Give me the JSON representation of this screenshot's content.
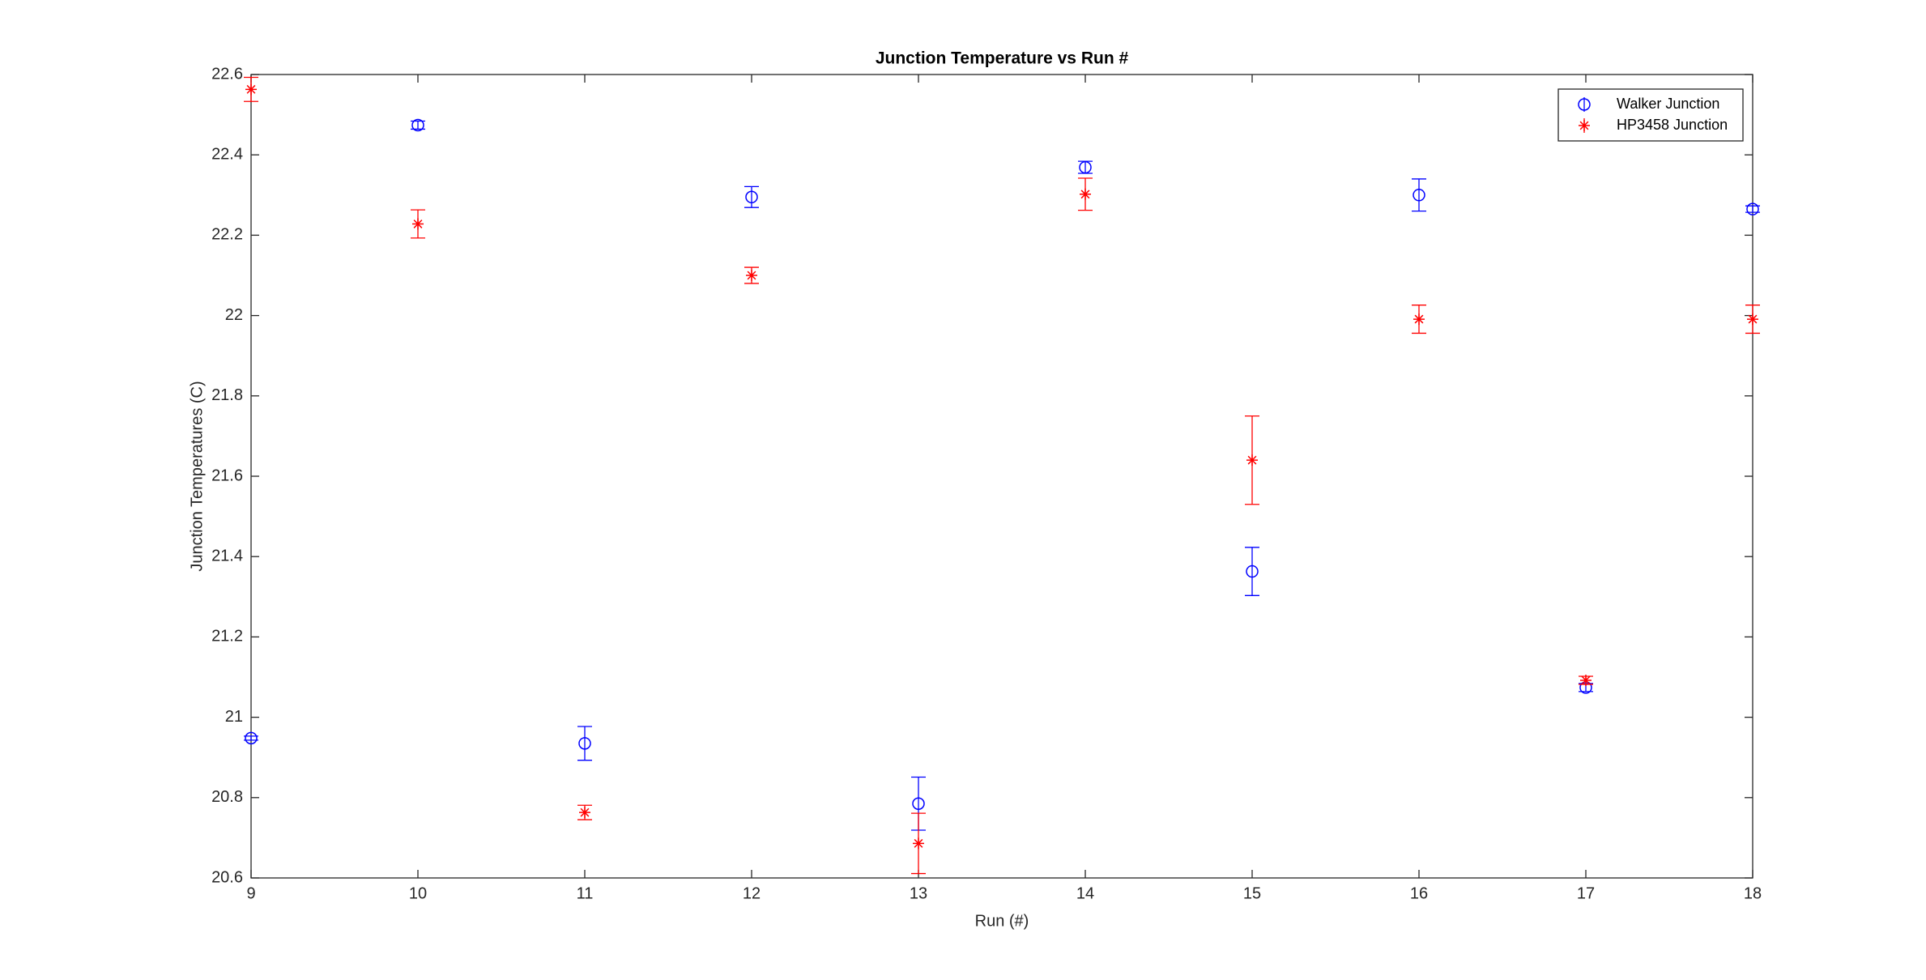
{
  "chart_data": {
    "type": "scatter",
    "title": "Junction Temperature vs Run #",
    "x_label": "Run (#)",
    "y_label": "Junction Temperatures (C)",
    "x": [
      9,
      10,
      11,
      12,
      13,
      14,
      15,
      16,
      17,
      18
    ],
    "xlim": [
      9,
      18
    ],
    "xticks": [
      9,
      10,
      11,
      12,
      13,
      14,
      15,
      16,
      17,
      18
    ],
    "ylim": [
      20.6,
      22.6
    ],
    "yticks": [
      20.6,
      20.8,
      21,
      21.2,
      21.4,
      21.6,
      21.8,
      22,
      22.2,
      22.4,
      22.6
    ],
    "grid": false,
    "legend": "top-right",
    "series": [
      {
        "name": "Walker Junction",
        "color": "#0000ff",
        "marker": "circle",
        "values": [
          20.948,
          22.474,
          20.935,
          22.295,
          20.785,
          22.369,
          21.363,
          22.3,
          21.074,
          22.265
        ],
        "errors": [
          0.005,
          0.01,
          0.042,
          0.026,
          0.066,
          0.015,
          0.06,
          0.04,
          0.01,
          0.008
        ]
      },
      {
        "name": "HP3458 Junction",
        "color": "#ff0000",
        "marker": "asterisk",
        "values": [
          22.563,
          22.228,
          20.763,
          22.1,
          20.686,
          22.302,
          21.64,
          21.991,
          21.092,
          21.991
        ],
        "errors": [
          0.03,
          0.035,
          0.018,
          0.02,
          0.075,
          0.04,
          0.11,
          0.035,
          0.01,
          0.035
        ]
      }
    ]
  }
}
